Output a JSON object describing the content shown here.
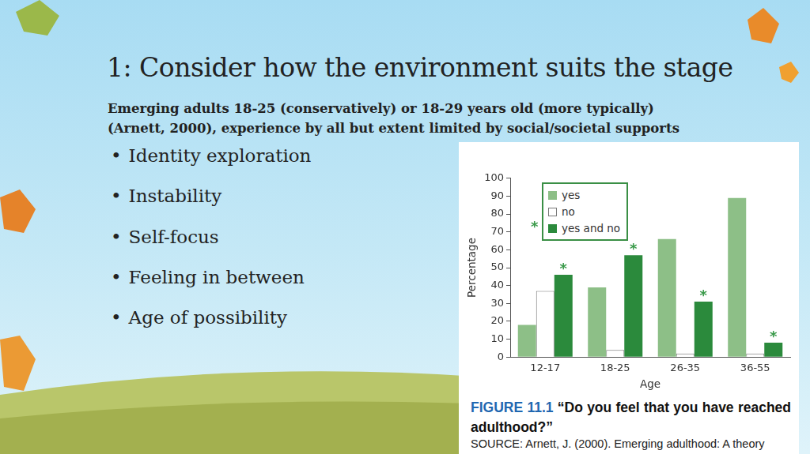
{
  "slide": {
    "title": "1: Consider how the environment suits the stage",
    "subtitle": [
      "Emerging adults 18-25 (conservatively) or 18-29 years old (more typically)",
      "(Arnett, 2000), experience by all but extent limited by social/societal supports"
    ],
    "bullets": [
      "Identity exploration",
      "Instability",
      "Self-focus",
      "Feeling in between",
      "Age of possibility"
    ]
  },
  "chart_data": {
    "type": "bar",
    "figure_label": "FIGURE 11.1",
    "title": "“Do you feel that you have reached adulthood?”",
    "source": "SOURCE: Arnett, J. (2000). Emerging adulthood: A theory",
    "x_label": "Age",
    "y_label": "Percentage",
    "categories": [
      "12-17",
      "18-25",
      "26-35",
      "36-55"
    ],
    "series": [
      {
        "name": "yes",
        "color": "#8dbf87",
        "values": [
          18,
          39,
          66,
          89
        ]
      },
      {
        "name": "no",
        "color": "#ffffff",
        "values": [
          37,
          4,
          2,
          2
        ]
      },
      {
        "name": "yes and no",
        "color": "#2b8a3c",
        "values": [
          46,
          57,
          31,
          8
        ]
      }
    ],
    "ylim": [
      0,
      100
    ],
    "yticks": [
      0,
      10,
      20,
      30,
      40,
      50,
      60,
      70,
      80,
      90,
      100
    ],
    "grid": false,
    "legend": "top-left",
    "annotations": [
      {
        "text": "*",
        "series": "yes and no"
      },
      {
        "text": "*",
        "series": "yes and no",
        "category": "12-17"
      },
      {
        "text": "*",
        "series": "yes and no",
        "category": "18-25"
      },
      {
        "text": "*",
        "series": "yes and no",
        "category": "26-35"
      },
      {
        "text": "*",
        "series": "yes and no",
        "category": "36-55"
      }
    ]
  }
}
